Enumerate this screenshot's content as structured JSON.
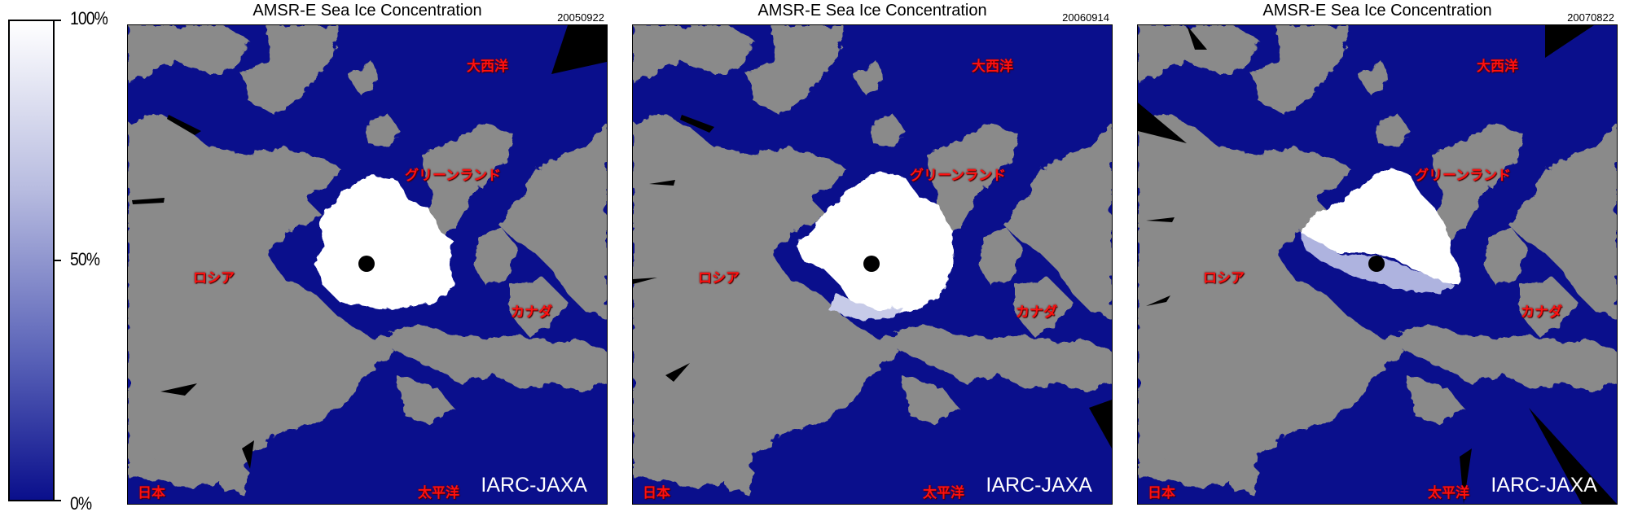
{
  "colorbar": {
    "labels": {
      "top": "100%",
      "mid": "50%",
      "bottom": "0%"
    },
    "colors": {
      "top": "#ffffff",
      "bottom": "#0a0f8c"
    }
  },
  "colors": {
    "ocean": "#0a0f8c",
    "land": "#8a8a8a",
    "ice": "#ffffff",
    "no_data": "#000000",
    "label": "#ff1010"
  },
  "panels": [
    {
      "title": "AMSR-E Sea Ice Concentration",
      "date": "20050922",
      "labels": {
        "atlantic": "大西洋",
        "greenland": "グリーンランド",
        "russia": "ロシア",
        "canada": "カナダ",
        "japan": "日本",
        "pacific": "太平洋"
      },
      "credit": "IARC-JAXA"
    },
    {
      "title": "AMSR-E Sea Ice Concentration",
      "date": "20060914",
      "labels": {
        "atlantic": "大西洋",
        "greenland": "グリーンランド",
        "russia": "ロシア",
        "canada": "カナダ",
        "japan": "日本",
        "pacific": "太平洋"
      },
      "credit": "IARC-JAXA"
    },
    {
      "title": "AMSR-E Sea Ice Concentration",
      "date": "20070822",
      "labels": {
        "atlantic": "大西洋",
        "greenland": "グリーンランド",
        "russia": "ロシア",
        "canada": "カナダ",
        "japan": "日本",
        "pacific": "太平洋"
      },
      "credit": "IARC-JAXA"
    }
  ]
}
